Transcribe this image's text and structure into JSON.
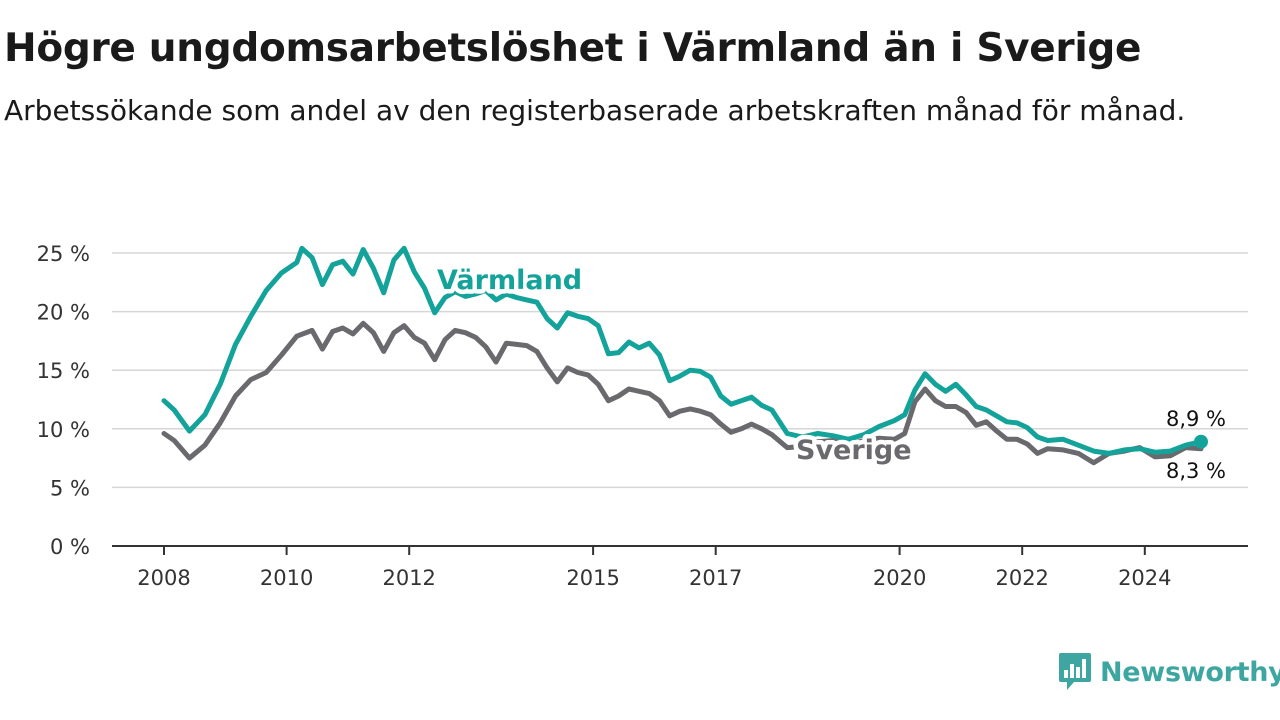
{
  "header": {
    "title": "Högre ungdomsarbetslöshet i Värmland än i Sverige",
    "subtitle": "Arbetssökande som andel av den registerbaserade arbetskraften månad för månad."
  },
  "brand": {
    "name": "Newsworthy",
    "icon": "newsworthy-logo-icon",
    "color": "#3ea6a0"
  },
  "chart_data": {
    "type": "line",
    "x_unit": "date (year-month)",
    "y_unit": "percent",
    "ylim": [
      0,
      26
    ],
    "y_ticks": [
      0,
      5,
      10,
      15,
      20,
      25
    ],
    "y_tick_labels": [
      "0 %",
      "5 %",
      "10 %",
      "15 %",
      "20 %",
      "25 %"
    ],
    "x_ticks": [
      "2008",
      "2010",
      "2012",
      "2015",
      "2017",
      "2020",
      "2022",
      "2024"
    ],
    "grid": "horizontal",
    "legend": "inline labels",
    "series": [
      {
        "name": "Värmland",
        "color": "#14a39a",
        "end_label": "8,9 %",
        "points": [
          [
            "2008-01",
            12.4
          ],
          [
            "2008-03",
            11.6
          ],
          [
            "2008-06",
            9.8
          ],
          [
            "2008-09",
            11.2
          ],
          [
            "2008-12",
            13.8
          ],
          [
            "2009-03",
            17.2
          ],
          [
            "2009-06",
            19.6
          ],
          [
            "2009-09",
            21.8
          ],
          [
            "2009-12",
            23.3
          ],
          [
            "2010-03",
            24.2
          ],
          [
            "2010-04",
            25.4
          ],
          [
            "2010-06",
            24.6
          ],
          [
            "2010-08",
            22.3
          ],
          [
            "2010-10",
            24.0
          ],
          [
            "2010-12",
            24.3
          ],
          [
            "2011-02",
            23.2
          ],
          [
            "2011-04",
            25.3
          ],
          [
            "2011-06",
            23.7
          ],
          [
            "2011-08",
            21.6
          ],
          [
            "2011-10",
            24.4
          ],
          [
            "2011-12",
            25.4
          ],
          [
            "2012-02",
            23.4
          ],
          [
            "2012-04",
            22.0
          ],
          [
            "2012-06",
            19.9
          ],
          [
            "2012-08",
            21.2
          ],
          [
            "2012-10",
            21.7
          ],
          [
            "2012-12",
            21.3
          ],
          [
            "2013-02",
            21.5
          ],
          [
            "2013-04",
            21.8
          ],
          [
            "2013-06",
            21.0
          ],
          [
            "2013-08",
            21.5
          ],
          [
            "2013-10",
            21.2
          ],
          [
            "2013-12",
            21.0
          ],
          [
            "2014-02",
            20.8
          ],
          [
            "2014-04",
            19.4
          ],
          [
            "2014-06",
            18.6
          ],
          [
            "2014-08",
            19.9
          ],
          [
            "2014-10",
            19.6
          ],
          [
            "2014-12",
            19.4
          ],
          [
            "2015-02",
            18.8
          ],
          [
            "2015-04",
            16.4
          ],
          [
            "2015-06",
            16.5
          ],
          [
            "2015-08",
            17.4
          ],
          [
            "2015-10",
            16.9
          ],
          [
            "2015-12",
            17.3
          ],
          [
            "2016-02",
            16.3
          ],
          [
            "2016-04",
            14.1
          ],
          [
            "2016-06",
            14.5
          ],
          [
            "2016-08",
            15.0
          ],
          [
            "2016-10",
            14.9
          ],
          [
            "2016-12",
            14.4
          ],
          [
            "2017-02",
            12.8
          ],
          [
            "2017-04",
            12.1
          ],
          [
            "2017-06",
            12.4
          ],
          [
            "2017-08",
            12.7
          ],
          [
            "2017-10",
            12.0
          ],
          [
            "2017-12",
            11.6
          ],
          [
            "2018-03",
            9.6
          ],
          [
            "2018-06",
            9.3
          ],
          [
            "2018-09",
            9.6
          ],
          [
            "2018-12",
            9.4
          ],
          [
            "2019-03",
            9.1
          ],
          [
            "2019-06",
            9.5
          ],
          [
            "2019-09",
            10.2
          ],
          [
            "2019-12",
            10.7
          ],
          [
            "2020-02",
            11.2
          ],
          [
            "2020-04",
            13.3
          ],
          [
            "2020-06",
            14.7
          ],
          [
            "2020-08",
            13.8
          ],
          [
            "2020-10",
            13.2
          ],
          [
            "2020-12",
            13.8
          ],
          [
            "2021-02",
            12.9
          ],
          [
            "2021-04",
            11.9
          ],
          [
            "2021-06",
            11.6
          ],
          [
            "2021-08",
            11.1
          ],
          [
            "2021-10",
            10.6
          ],
          [
            "2021-12",
            10.5
          ],
          [
            "2022-02",
            10.1
          ],
          [
            "2022-04",
            9.3
          ],
          [
            "2022-06",
            9.0
          ],
          [
            "2022-09",
            9.1
          ],
          [
            "2022-12",
            8.6
          ],
          [
            "2023-03",
            8.1
          ],
          [
            "2023-06",
            7.9
          ],
          [
            "2023-09",
            8.2
          ],
          [
            "2023-12",
            8.3
          ],
          [
            "2024-03",
            8.0
          ],
          [
            "2024-06",
            8.1
          ],
          [
            "2024-09",
            8.6
          ],
          [
            "2024-12",
            8.9
          ]
        ]
      },
      {
        "name": "Sverige",
        "color": "#6a6a6e",
        "end_label": "8,3 %",
        "points": [
          [
            "2008-01",
            9.6
          ],
          [
            "2008-03",
            9.0
          ],
          [
            "2008-06",
            7.5
          ],
          [
            "2008-09",
            8.6
          ],
          [
            "2008-12",
            10.5
          ],
          [
            "2009-03",
            12.8
          ],
          [
            "2009-06",
            14.2
          ],
          [
            "2009-09",
            14.8
          ],
          [
            "2009-12",
            16.3
          ],
          [
            "2010-03",
            17.9
          ],
          [
            "2010-06",
            18.4
          ],
          [
            "2010-08",
            16.8
          ],
          [
            "2010-10",
            18.3
          ],
          [
            "2010-12",
            18.6
          ],
          [
            "2011-02",
            18.1
          ],
          [
            "2011-04",
            19.0
          ],
          [
            "2011-06",
            18.2
          ],
          [
            "2011-08",
            16.6
          ],
          [
            "2011-10",
            18.2
          ],
          [
            "2011-12",
            18.8
          ],
          [
            "2012-02",
            17.8
          ],
          [
            "2012-04",
            17.3
          ],
          [
            "2012-06",
            15.9
          ],
          [
            "2012-08",
            17.6
          ],
          [
            "2012-10",
            18.4
          ],
          [
            "2012-12",
            18.2
          ],
          [
            "2013-02",
            17.8
          ],
          [
            "2013-04",
            17.0
          ],
          [
            "2013-06",
            15.7
          ],
          [
            "2013-08",
            17.3
          ],
          [
            "2013-10",
            17.2
          ],
          [
            "2013-12",
            17.1
          ],
          [
            "2014-02",
            16.6
          ],
          [
            "2014-04",
            15.2
          ],
          [
            "2014-06",
            14.0
          ],
          [
            "2014-08",
            15.2
          ],
          [
            "2014-10",
            14.8
          ],
          [
            "2014-12",
            14.6
          ],
          [
            "2015-02",
            13.8
          ],
          [
            "2015-04",
            12.4
          ],
          [
            "2015-06",
            12.8
          ],
          [
            "2015-08",
            13.4
          ],
          [
            "2015-10",
            13.2
          ],
          [
            "2015-12",
            13.0
          ],
          [
            "2016-02",
            12.4
          ],
          [
            "2016-04",
            11.1
          ],
          [
            "2016-06",
            11.5
          ],
          [
            "2016-08",
            11.7
          ],
          [
            "2016-10",
            11.5
          ],
          [
            "2016-12",
            11.2
          ],
          [
            "2017-02",
            10.4
          ],
          [
            "2017-04",
            9.7
          ],
          [
            "2017-06",
            10.0
          ],
          [
            "2017-08",
            10.4
          ],
          [
            "2017-10",
            10.0
          ],
          [
            "2017-12",
            9.5
          ],
          [
            "2018-03",
            8.4
          ],
          [
            "2018-06",
            8.5
          ],
          [
            "2018-09",
            8.9
          ],
          [
            "2018-12",
            9.0
          ],
          [
            "2019-03",
            8.6
          ],
          [
            "2019-06",
            9.0
          ],
          [
            "2019-09",
            9.2
          ],
          [
            "2019-12",
            9.1
          ],
          [
            "2020-02",
            9.6
          ],
          [
            "2020-04",
            12.3
          ],
          [
            "2020-06",
            13.4
          ],
          [
            "2020-08",
            12.4
          ],
          [
            "2020-10",
            11.9
          ],
          [
            "2020-12",
            11.9
          ],
          [
            "2021-02",
            11.4
          ],
          [
            "2021-04",
            10.3
          ],
          [
            "2021-06",
            10.6
          ],
          [
            "2021-08",
            9.8
          ],
          [
            "2021-10",
            9.1
          ],
          [
            "2021-12",
            9.1
          ],
          [
            "2022-02",
            8.7
          ],
          [
            "2022-04",
            7.9
          ],
          [
            "2022-06",
            8.3
          ],
          [
            "2022-09",
            8.2
          ],
          [
            "2022-12",
            7.9
          ],
          [
            "2023-03",
            7.1
          ],
          [
            "2023-06",
            7.9
          ],
          [
            "2023-09",
            8.1
          ],
          [
            "2023-12",
            8.4
          ],
          [
            "2024-03",
            7.6
          ],
          [
            "2024-06",
            7.7
          ],
          [
            "2024-09",
            8.4
          ],
          [
            "2024-12",
            8.3
          ]
        ]
      }
    ]
  }
}
